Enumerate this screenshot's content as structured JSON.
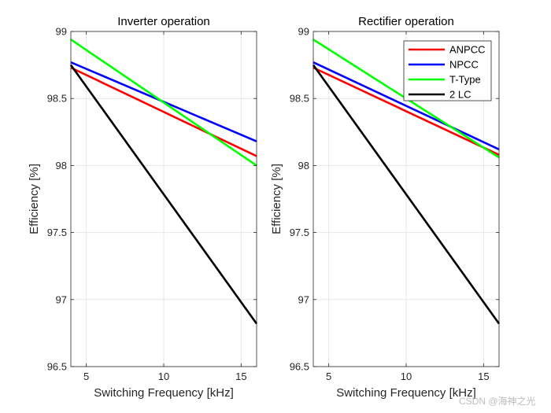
{
  "chart_data": [
    {
      "type": "line",
      "title": "Inverter operation",
      "xlabel": "Switching Frequency [kHz]",
      "ylabel": "Efficiency [%]",
      "xlim": [
        4,
        16
      ],
      "ylim": [
        96.5,
        99
      ],
      "xticks": [
        5,
        10,
        15
      ],
      "yticks": [
        96.5,
        97,
        97.5,
        98,
        98.5,
        99
      ],
      "xtick_labels": [
        "5",
        "10",
        "15"
      ],
      "ytick_labels": [
        "96.5",
        "97",
        "97.5",
        "98",
        "98.5",
        "99"
      ],
      "grid": true,
      "series": [
        {
          "name": "ANPCC",
          "color": "#ff0000",
          "x": [
            4,
            16
          ],
          "y": [
            98.73,
            98.07
          ]
        },
        {
          "name": "NPCC",
          "color": "#0000ff",
          "x": [
            4,
            16
          ],
          "y": [
            98.77,
            98.18
          ]
        },
        {
          "name": "T-Type",
          "color": "#00ff00",
          "x": [
            4,
            16
          ],
          "y": [
            98.94,
            98.0
          ]
        },
        {
          "name": "2 LC",
          "color": "#000000",
          "x": [
            4,
            16
          ],
          "y": [
            98.75,
            96.82
          ]
        }
      ]
    },
    {
      "type": "line",
      "title": "Rectifier operation",
      "xlabel": "Switching Frequency [kHz]",
      "ylabel": "Efficiency [%]",
      "xlim": [
        4,
        16
      ],
      "ylim": [
        96.5,
        99
      ],
      "xticks": [
        5,
        10,
        15
      ],
      "yticks": [
        96.5,
        97,
        97.5,
        98,
        98.5,
        99
      ],
      "xtick_labels": [
        "5",
        "10",
        "15"
      ],
      "ytick_labels": [
        "96.5",
        "97",
        "97.5",
        "98",
        "98.5",
        "99"
      ],
      "grid": true,
      "legend": "top-right",
      "series": [
        {
          "name": "ANPCC",
          "color": "#ff0000",
          "x": [
            4,
            16
          ],
          "y": [
            98.73,
            98.08
          ]
        },
        {
          "name": "NPCC",
          "color": "#0000ff",
          "x": [
            4,
            16
          ],
          "y": [
            98.77,
            98.12
          ]
        },
        {
          "name": "T-Type",
          "color": "#00ff00",
          "x": [
            4,
            16
          ],
          "y": [
            98.94,
            98.06
          ]
        },
        {
          "name": "2 LC",
          "color": "#000000",
          "x": [
            4,
            16
          ],
          "y": [
            98.75,
            96.82
          ]
        }
      ]
    }
  ],
  "watermark": "CSDN @海神之光"
}
